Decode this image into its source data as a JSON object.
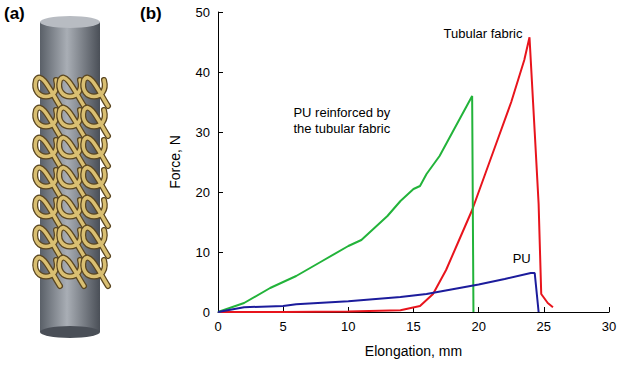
{
  "panel_labels": [
    "(a)",
    "(b)"
  ],
  "chart_data": {
    "type": "line",
    "x_label": "Elongation, mm",
    "y_label": "Force, N",
    "xlim": [
      0,
      30
    ],
    "xticks": [
      0,
      5,
      10,
      15,
      20,
      25,
      30
    ],
    "ylim": [
      0,
      50
    ],
    "yticks": [
      0,
      10,
      20,
      30,
      40,
      50
    ],
    "grid": false,
    "marker": "none",
    "series": [
      {
        "name": "Tubular fabric",
        "color": "#e8141c",
        "x": [
          0,
          5,
          10,
          14,
          15.5,
          16.5,
          17.5,
          18.5,
          19.5,
          20.5,
          21.5,
          22.5,
          23.5,
          23.9,
          24.3,
          24.6,
          24.8,
          25.3,
          25.7
        ],
        "values": [
          0,
          0,
          0.1,
          0.3,
          1,
          3,
          7,
          12,
          17,
          23,
          29,
          35,
          42,
          45.8,
          30,
          18,
          3,
          1.5,
          0.8
        ]
      },
      {
        "name": "PU reinforced by\nthe tubular fabric",
        "color": "#22b33a",
        "x": [
          0,
          2,
          4,
          6,
          8,
          10,
          11,
          12,
          13,
          14,
          15,
          15.5,
          16,
          17,
          18,
          19,
          19.5,
          19.6
        ],
        "values": [
          0,
          1.5,
          4,
          6,
          8.5,
          11,
          12,
          14,
          16,
          18.5,
          20.5,
          21,
          23,
          26,
          30,
          34,
          36,
          0
        ]
      },
      {
        "name": "PU",
        "color": "#1c1c9c",
        "x": [
          0,
          2,
          5,
          6,
          10,
          14,
          16,
          18,
          20,
          22,
          24,
          24.3,
          24.6
        ],
        "values": [
          0,
          0.8,
          1,
          1.3,
          1.8,
          2.5,
          3,
          3.8,
          4.6,
          5.5,
          6.5,
          6.5,
          0
        ]
      }
    ]
  }
}
